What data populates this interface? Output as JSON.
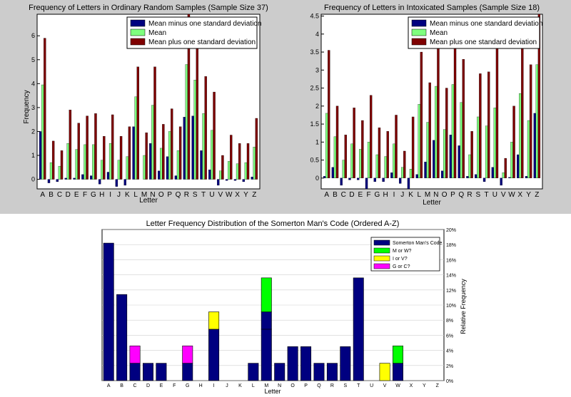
{
  "chart_data": [
    {
      "type": "bar",
      "title": "Frequency of Letters in Ordinary Random Samples (Sample Size 37)",
      "xlabel": "Letter",
      "ylabel": "Frequency",
      "ylim": [
        -0.4,
        6.9
      ],
      "yticks": [
        "0",
        "1",
        "2",
        "3",
        "4",
        "5",
        "6"
      ],
      "grid": false,
      "legend": "top-right",
      "categories": [
        "A",
        "B",
        "C",
        "D",
        "E",
        "F",
        "G",
        "H",
        "I",
        "J",
        "K",
        "L",
        "M",
        "N",
        "O",
        "P",
        "Q",
        "R",
        "S",
        "T",
        "U",
        "V",
        "W",
        "X",
        "Y",
        "Z"
      ],
      "series": [
        {
          "name": "Mean minus one standard deviation",
          "color": "#00007f",
          "values": [
            2.0,
            -0.15,
            -0.1,
            0.05,
            0.05,
            0.2,
            0.15,
            -0.2,
            0.3,
            -0.3,
            -0.25,
            2.2,
            0.0,
            1.5,
            0.35,
            0.95,
            0.15,
            2.6,
            2.65,
            1.2,
            0.4,
            -0.25,
            -0.05,
            -0.05,
            -0.1,
            0.1
          ]
        },
        {
          "name": "Mean",
          "color": "#7fff7f",
          "values": [
            3.95,
            0.7,
            0.55,
            1.5,
            1.25,
            1.45,
            1.45,
            0.8,
            1.5,
            0.8,
            0.95,
            3.45,
            1.0,
            3.1,
            1.3,
            2.0,
            1.2,
            4.8,
            4.15,
            2.75,
            2.05,
            0.35,
            0.75,
            0.65,
            0.7,
            1.35
          ]
        },
        {
          "name": "Mean plus one standard deviation",
          "color": "#7f0000",
          "values": [
            5.9,
            1.6,
            1.2,
            2.9,
            2.35,
            2.65,
            2.75,
            1.8,
            2.7,
            1.8,
            2.2,
            4.7,
            1.95,
            4.7,
            2.3,
            2.95,
            2.2,
            6.9,
            5.6,
            4.3,
            3.65,
            1.0,
            1.85,
            1.5,
            1.5,
            2.55
          ]
        }
      ]
    },
    {
      "type": "bar",
      "title": "Frequency of Letters in Intoxicated Samples (Sample Size 18)",
      "xlabel": "Letter",
      "ylabel": "",
      "ylim": [
        -0.3,
        4.55
      ],
      "yticks": [
        "0",
        "0.5",
        "1",
        "1.5",
        "2",
        "2.5",
        "3",
        "3.5",
        "4",
        "4.5"
      ],
      "grid": false,
      "legend": "top-right",
      "categories": [
        "A",
        "B",
        "C",
        "D",
        "E",
        "F",
        "G",
        "H",
        "I",
        "J",
        "K",
        "L",
        "M",
        "N",
        "O",
        "P",
        "Q",
        "R",
        "S",
        "T",
        "U",
        "V",
        "W",
        "X",
        "Y",
        "Z"
      ],
      "series": [
        {
          "name": "Mean minus one standard deviation",
          "color": "#00007f",
          "values": [
            0.05,
            0.3,
            -0.2,
            -0.05,
            -0.05,
            -0.3,
            -0.1,
            -0.1,
            0.15,
            -0.15,
            -0.3,
            0.1,
            0.45,
            1.05,
            0.2,
            1.2,
            0.9,
            0.05,
            0.1,
            -0.1,
            0.3,
            -0.2,
            0.02,
            0.65,
            0.05,
            1.8
          ]
        },
        {
          "name": "Mean",
          "color": "#7fff7f",
          "values": [
            1.8,
            1.15,
            0.5,
            0.95,
            0.8,
            1.0,
            0.65,
            0.6,
            0.95,
            0.3,
            0.25,
            2.05,
            1.55,
            2.55,
            1.35,
            2.6,
            2.1,
            0.65,
            1.7,
            1.45,
            1.95,
            0.15,
            1.0,
            2.35,
            1.6,
            3.15
          ]
        },
        {
          "name": "Mean plus one standard deviation",
          "color": "#7f0000",
          "values": [
            3.55,
            2.0,
            1.2,
            1.95,
            1.6,
            2.3,
            1.4,
            1.3,
            1.75,
            0.75,
            1.7,
            3.5,
            2.65,
            4.05,
            2.5,
            4.1,
            3.3,
            1.3,
            2.9,
            2.95,
            3.6,
            0.55,
            2.0,
            4.05,
            3.15,
            4.55
          ]
        }
      ]
    },
    {
      "type": "bar",
      "stacked": true,
      "title": "Letter Frequency Distribution of the Somerton Man's Code (Ordered A-Z)",
      "xlabel": "Letter",
      "ylabel": "Relative Frequency",
      "ylim": [
        0,
        20
      ],
      "yticks": [
        "0%",
        "2%",
        "4%",
        "6%",
        "8%",
        "10%",
        "12%",
        "14%",
        "16%",
        "18%",
        "20%"
      ],
      "grid": true,
      "legend": "top-right",
      "categories": [
        "A",
        "B",
        "C",
        "D",
        "E",
        "F",
        "G",
        "H",
        "I",
        "J",
        "K",
        "L",
        "M",
        "N",
        "O",
        "P",
        "Q",
        "R",
        "S",
        "T",
        "U",
        "V",
        "W",
        "X",
        "Y",
        "Z"
      ],
      "series": [
        {
          "name": "Somerton Man's Code",
          "color": "#000080",
          "values": [
            18.2,
            11.4,
            2.3,
            2.3,
            2.3,
            0,
            2.3,
            0,
            6.8,
            0,
            0,
            2.3,
            9.1,
            2.3,
            4.5,
            4.5,
            2.3,
            2.3,
            4.5,
            13.6,
            0,
            0,
            2.3,
            0,
            0,
            0
          ]
        },
        {
          "name": "M or W?",
          "color": "#00ff00",
          "values": [
            0,
            0,
            0,
            0,
            0,
            0,
            0,
            0,
            0,
            0,
            0,
            0,
            4.5,
            0,
            0,
            0,
            0,
            0,
            0,
            0,
            0,
            0,
            2.3,
            0,
            0,
            0
          ]
        },
        {
          "name": "I or V?",
          "color": "#ffff00",
          "values": [
            0,
            0,
            0,
            0,
            0,
            0,
            0,
            0,
            2.3,
            0,
            0,
            0,
            0,
            0,
            0,
            0,
            0,
            0,
            0,
            0,
            0,
            2.3,
            0,
            0,
            0,
            0
          ]
        },
        {
          "name": "G or C?",
          "color": "#ff00ff",
          "values": [
            0,
            0,
            2.3,
            0,
            0,
            0,
            2.3,
            0,
            0,
            0,
            0,
            0,
            0,
            0,
            0,
            0,
            0,
            0,
            0,
            0,
            0,
            0,
            0,
            0,
            0,
            0
          ]
        }
      ],
      "segments": {
        "M": [
          6.8,
          2.3,
          4.5
        ],
        "W": [
          2.3,
          2.3
        ]
      }
    }
  ]
}
